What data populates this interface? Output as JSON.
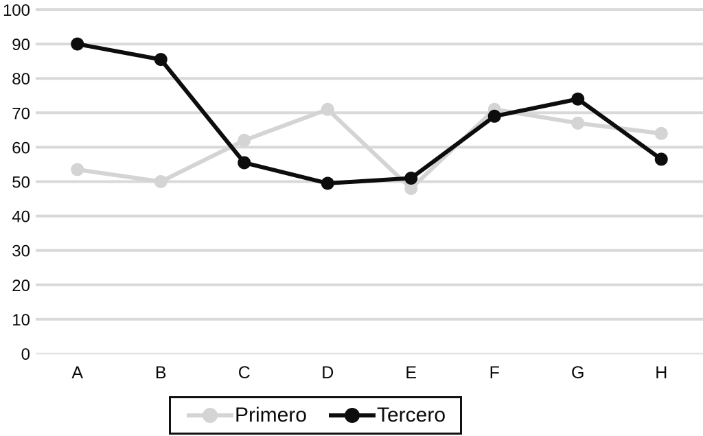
{
  "chart_data": {
    "type": "line",
    "title": "",
    "xlabel": "",
    "ylabel": "",
    "categories": [
      "A",
      "B",
      "C",
      "D",
      "E",
      "F",
      "G",
      "H"
    ],
    "series": [
      {
        "name": "Primero",
        "color": "#d4d4d4",
        "values": [
          53.5,
          50,
          62,
          71,
          48,
          71,
          67,
          64
        ]
      },
      {
        "name": "Tercero",
        "color": "#0d0d0d",
        "values": [
          90,
          85.5,
          55.5,
          49.5,
          51,
          69,
          74,
          56.5
        ]
      }
    ],
    "ylim": [
      0,
      100
    ],
    "yticks": [
      0,
      10,
      20,
      30,
      40,
      50,
      60,
      70,
      80,
      90,
      100
    ],
    "grid": true,
    "legend_position": "bottom",
    "colors": {
      "gridline": "#d9d9d9",
      "axis_line": "#e3e3e3",
      "tick_text": "#0a0a0a",
      "background": "#ffffff"
    }
  }
}
